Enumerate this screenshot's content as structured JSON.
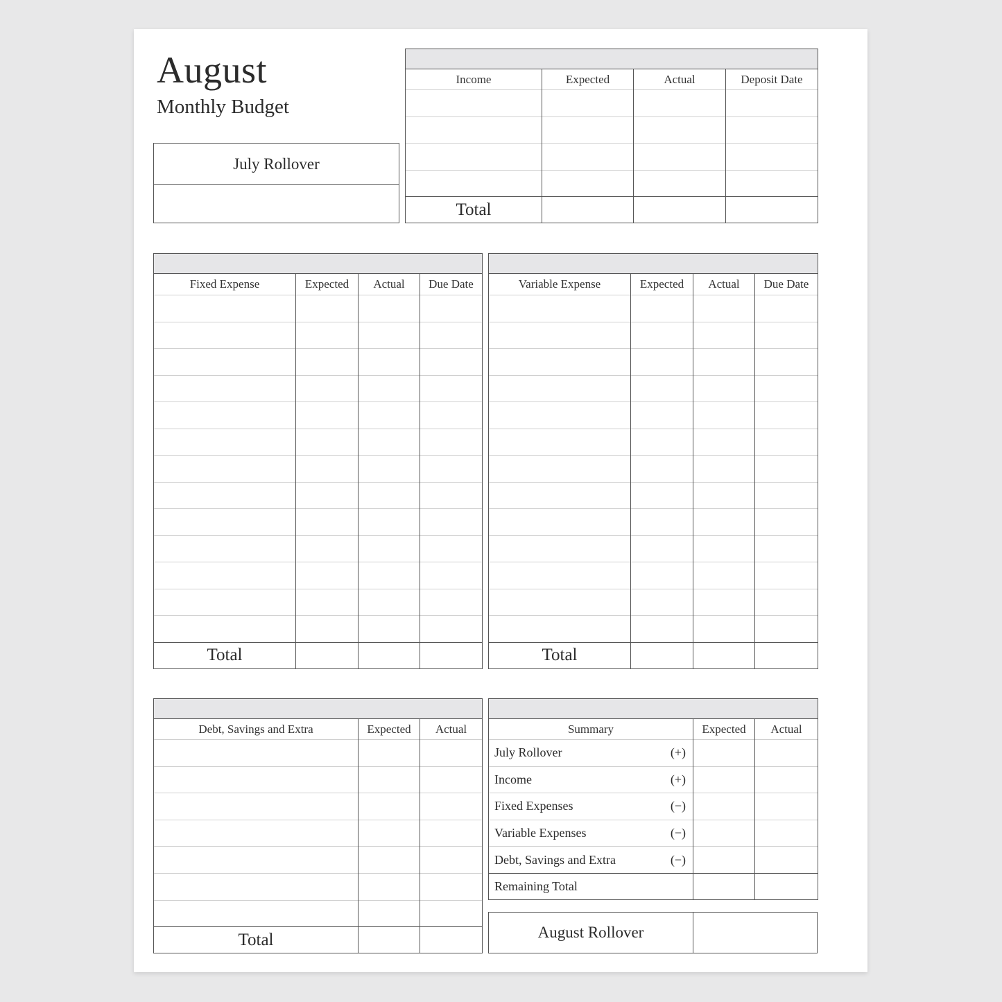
{
  "header": {
    "month": "August",
    "subtitle": "Monthly Budget"
  },
  "prev_rollover": {
    "label": "July Rollover"
  },
  "income": {
    "columns": [
      "Income",
      "Expected",
      "Actual",
      "Deposit Date"
    ],
    "total_label": "Total"
  },
  "fixed": {
    "columns": [
      "Fixed Expense",
      "Expected",
      "Actual",
      "Due Date"
    ],
    "total_label": "Total"
  },
  "variable": {
    "columns": [
      "Variable Expense",
      "Expected",
      "Actual",
      "Due Date"
    ],
    "total_label": "Total"
  },
  "debt": {
    "columns": [
      "Debt, Savings and Extra",
      "Expected",
      "Actual"
    ],
    "total_label": "Total"
  },
  "summary": {
    "columns": [
      "Summary",
      "Expected",
      "Actual"
    ],
    "rows": [
      {
        "label": "July Rollover",
        "sign": "(+)"
      },
      {
        "label": "Income",
        "sign": "(+)"
      },
      {
        "label": "Fixed Expenses",
        "sign": "(−)"
      },
      {
        "label": "Variable Expenses",
        "sign": "(−)"
      },
      {
        "label": "Debt, Savings and Extra",
        "sign": "(−)"
      }
    ],
    "remaining_label": "Remaining Total"
  },
  "next_rollover": {
    "label": "August Rollover"
  }
}
